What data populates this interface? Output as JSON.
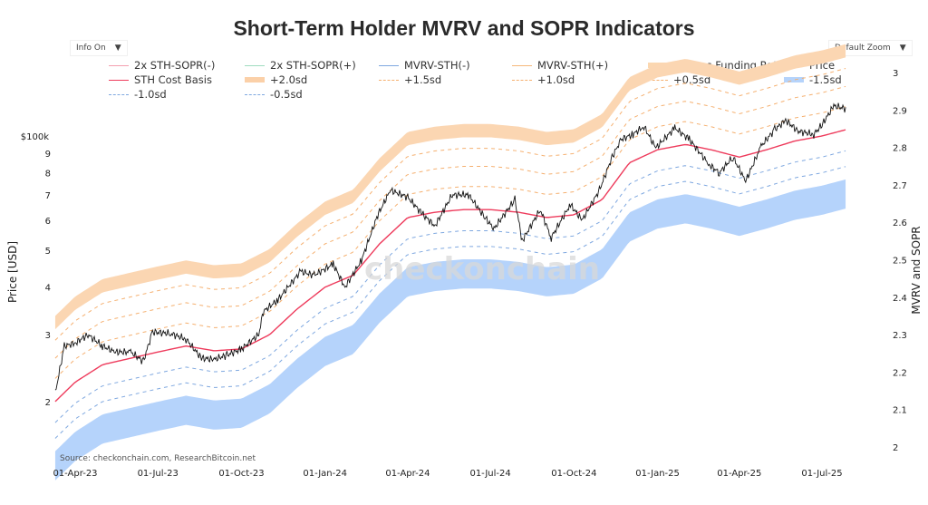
{
  "title": "Short-Term Holder MVRV and SOPR Indicators",
  "controls": {
    "info": "Info On",
    "zoom": "Default Zoom",
    "arrow": "▼"
  },
  "source": "Source: checkonchain.com, ResearchBitcoin.net",
  "watermark": "checkonchain",
  "legend": [
    {
      "label": "2x STH-SOPR(-)",
      "color": "#f4a0b0",
      "style": "line"
    },
    {
      "label": "2x STH-SOPR(+)",
      "color": "#9fdcc0",
      "style": "line"
    },
    {
      "label": "MVRV-STH(-)",
      "color": "#7fa8e0",
      "style": "line"
    },
    {
      "label": "MVRV-STH(+)",
      "color": "#f5b87a",
      "style": "line"
    },
    {
      "label": "Futures Funding Rate",
      "color": "#fbd7b0",
      "style": "band"
    },
    {
      "label": "Price",
      "color": "#111111",
      "style": "line"
    },
    {
      "label": "STH Cost Basis",
      "color": "#ee3b5c",
      "style": "line"
    },
    {
      "label": "+2.0sd",
      "color": "#fbd0a8",
      "style": "band"
    },
    {
      "label": "+1.5sd",
      "color": "#f5b070",
      "style": "dash"
    },
    {
      "label": "+1.0sd",
      "color": "#f5b070",
      "style": "dash"
    },
    {
      "label": "+0.5sd",
      "color": "#f5b070",
      "style": "dash"
    },
    {
      "label": "-1.5sd",
      "color": "#b5d3fb",
      "style": "band"
    },
    {
      "label": "-1.0sd",
      "color": "#7fa8e0",
      "style": "dash"
    },
    {
      "label": "-0.5sd",
      "color": "#7fa8e0",
      "style": "dash"
    }
  ],
  "chart_data": {
    "type": "line",
    "title": "Short-Term Holder MVRV and SOPR Indicators",
    "ylabel": "Price [USD]",
    "y2label": "MVRV and SOPR",
    "yscale": "log",
    "ylim": [
      17000,
      130000
    ],
    "y2lim": [
      2,
      3
    ],
    "y_ticks": [
      {
        "v": 20000,
        "l": "2"
      },
      {
        "v": 30000,
        "l": "3"
      },
      {
        "v": 40000,
        "l": "4"
      },
      {
        "v": 50000,
        "l": "5"
      },
      {
        "v": 60000,
        "l": "6"
      },
      {
        "v": 70000,
        "l": "7"
      },
      {
        "v": 80000,
        "l": "8"
      },
      {
        "v": 90000,
        "l": "9"
      },
      {
        "v": 100000,
        "l": "$100k"
      }
    ],
    "y2_ticks": [
      "2",
      "2.1",
      "2.2",
      "2.3",
      "2.4",
      "2.5",
      "2.6",
      "2.7",
      "2.8",
      "2.9",
      "3"
    ],
    "x_ticks": [
      "01-Apr-23",
      "01-Jul-23",
      "01-Oct-23",
      "01-Jan-24",
      "01-Apr-24",
      "01-Jul-24",
      "01-Oct-24",
      "01-Jan-25",
      "01-Apr-25",
      "01-Jul-25"
    ],
    "x_tick_dates": [
      "2023-04-01",
      "2023-07-01",
      "2023-10-01",
      "2024-01-01",
      "2024-04-01",
      "2024-07-01",
      "2024-10-01",
      "2025-01-01",
      "2025-04-01",
      "2025-07-01"
    ],
    "grid": false,
    "legend_position": "top",
    "cost_basis": {
      "dates": [
        "2023-03-10",
        "2023-04-01",
        "2023-05-01",
        "2023-06-01",
        "2023-07-01",
        "2023-08-01",
        "2023-09-01",
        "2023-10-01",
        "2023-11-01",
        "2023-12-01",
        "2024-01-01",
        "2024-02-01",
        "2024-03-01",
        "2024-04-01",
        "2024-05-01",
        "2024-06-01",
        "2024-07-01",
        "2024-08-01",
        "2024-09-01",
        "2024-10-01",
        "2024-11-01",
        "2024-12-01",
        "2025-01-01",
        "2025-02-01",
        "2025-03-01",
        "2025-04-01",
        "2025-05-01",
        "2025-06-01",
        "2025-07-01",
        "2025-07-28"
      ],
      "values": [
        20000,
        22500,
        25000,
        26000,
        27000,
        28000,
        27200,
        27500,
        30000,
        35000,
        40000,
        43000,
        52000,
        61000,
        63000,
        64000,
        64000,
        63000,
        61000,
        62000,
        68000,
        85000,
        92000,
        95000,
        92000,
        88000,
        92000,
        97000,
        100000,
        104000
      ]
    },
    "mvrv_bands": {
      "+2.0sd": [
        1.55,
        1.68
      ],
      "+1.5sd": 1.45,
      "+1.0sd": 1.3,
      "+0.5sd": 1.15,
      "-0.5sd": 0.88,
      "-1.0sd": 0.8,
      "-1.5sd": [
        0.62,
        0.74
      ]
    },
    "price": {
      "dates": [
        "2023-03-10",
        "2023-03-20",
        "2023-04-01",
        "2023-04-15",
        "2023-05-01",
        "2023-05-15",
        "2023-06-01",
        "2023-06-15",
        "2023-06-25",
        "2023-07-15",
        "2023-08-01",
        "2023-08-18",
        "2023-09-01",
        "2023-09-15",
        "2023-10-01",
        "2023-10-20",
        "2023-10-25",
        "2023-11-10",
        "2023-12-05",
        "2023-12-20",
        "2024-01-10",
        "2024-01-23",
        "2024-02-10",
        "2024-02-28",
        "2024-03-13",
        "2024-04-01",
        "2024-04-18",
        "2024-05-01",
        "2024-05-20",
        "2024-06-07",
        "2024-06-25",
        "2024-07-05",
        "2024-07-28",
        "2024-08-05",
        "2024-08-25",
        "2024-09-06",
        "2024-09-27",
        "2024-10-10",
        "2024-10-29",
        "2024-11-12",
        "2024-11-22",
        "2024-12-05",
        "2024-12-17",
        "2024-12-30",
        "2025-01-20",
        "2025-02-05",
        "2025-02-27",
        "2025-03-10",
        "2025-03-25",
        "2025-04-08",
        "2025-04-25",
        "2025-05-10",
        "2025-05-22",
        "2025-06-05",
        "2025-06-22",
        "2025-07-01",
        "2025-07-14",
        "2025-07-28"
      ],
      "values": [
        21000,
        28000,
        28500,
        30000,
        28000,
        27000,
        27000,
        25500,
        30500,
        30200,
        29200,
        26000,
        25800,
        26500,
        27500,
        30000,
        34500,
        37000,
        44000,
        43000,
        46000,
        40000,
        47000,
        62000,
        72000,
        69000,
        62000,
        58000,
        70000,
        70000,
        61000,
        57000,
        68000,
        53000,
        64000,
        54000,
        66000,
        60000,
        72000,
        88000,
        98000,
        101000,
        106000,
        93000,
        105000,
        98000,
        84000,
        80000,
        88000,
        76000,
        94000,
        104000,
        110000,
        103000,
        101000,
        107000,
        120000,
        118000
      ]
    }
  }
}
